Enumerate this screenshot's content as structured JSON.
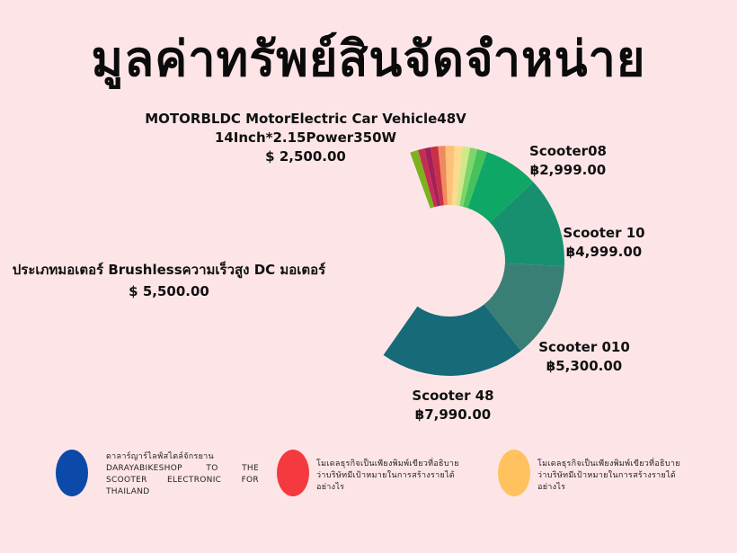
{
  "title": "มูลค่าทรัพย์สินจัดจำหน่าย",
  "chart_data": {
    "type": "pie",
    "variant": "half-donut",
    "labels": [
      {
        "name": "MOTORBLDC MotorElectric Car Vehicle48V 14Inch*2.15Power350W",
        "value_text": "$ 2,500.00"
      },
      {
        "name": "ประเภทมอเตอร์ Brushlessความเร็วสูง DC มอเตอร์",
        "value_text": "$ 5,500.00"
      },
      {
        "name": "Scooter08",
        "value_text": "฿2,999.00"
      },
      {
        "name": "Scooter 10",
        "value_text": "฿4,999.00"
      },
      {
        "name": "Scooter 010",
        "value_text": "฿5,300.00"
      },
      {
        "name": "Scooter 48",
        "value_text": "฿7,990.00"
      }
    ],
    "slices": [
      {
        "value": 7990,
        "color": "#176a78"
      },
      {
        "value": 5300,
        "color": "#3a7f76"
      },
      {
        "value": 4999,
        "color": "#17906f"
      },
      {
        "value": 2999,
        "color": "#0fa766"
      },
      {
        "value": 550,
        "color": "#45c25b"
      },
      {
        "value": 400,
        "color": "#7fd46a"
      },
      {
        "value": 400,
        "color": "#cfe88a"
      },
      {
        "value": 450,
        "color": "#ffd98e"
      },
      {
        "value": 500,
        "color": "#ffc07a"
      },
      {
        "value": 400,
        "color": "#f08a5c"
      },
      {
        "value": 400,
        "color": "#c93048"
      },
      {
        "value": 350,
        "color": "#a3205a"
      },
      {
        "value": 350,
        "color": "#c42e52"
      },
      {
        "value": 450,
        "color": "#7bb21e"
      }
    ]
  },
  "legend": [
    {
      "color": "#0b4aa8",
      "text": "ดาลาร์ญาร์ไลฟ์สไตล์จักรยาน DARAYABIKESHOP TO THE SCOOTER ELECTRONIC FOR THAILAND"
    },
    {
      "color": "#f43a3e",
      "text": "โมเดลธุรกิจเป็นเพียงพิมพ์เขียวที่อธิบายว่าบริษัทมีเป้าหมายในการสร้างรายได้อย่างไร"
    },
    {
      "color": "#ffc25e",
      "text": "โมเดลธุรกิจเป็นเพียงพิมพ์เขียวที่อธิบายว่าบริษัทมีเป้าหมายในการสร้างรายได้อย่างไร"
    }
  ]
}
